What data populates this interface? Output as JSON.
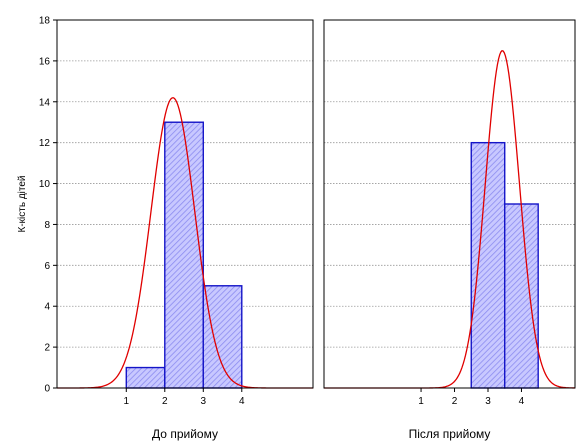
{
  "colors": {
    "background": "#ffffff",
    "panel_background": "#ffffff",
    "bar_fill": "#c8c8ff",
    "bar_hatch": "#8c8cf0",
    "bar_stroke": "#1515c8",
    "curve": "#e00000",
    "grid": "#9a9a9a",
    "axis": "#000000"
  },
  "chart_data": [
    {
      "type": "bar",
      "panel": "left",
      "title": "",
      "xlabel": "До прийому",
      "ylabel": "К-кість дітей",
      "ylim": [
        0,
        18
      ],
      "yticks": [
        "0",
        "2",
        "4",
        "6",
        "8",
        "10",
        "12",
        "14",
        "16",
        "18"
      ],
      "xlim": [
        -0.8,
        5.85
      ],
      "xticks": [
        "1",
        "2",
        "3",
        "4"
      ],
      "grid": true,
      "histogram": {
        "bins": [
          [
            1,
            2
          ],
          [
            2,
            3
          ],
          [
            3,
            4
          ]
        ],
        "counts": [
          1,
          13,
          5
        ]
      },
      "normal_fit": {
        "mean": 2.21,
        "sd": 0.57,
        "peak": 14.2
      }
    },
    {
      "type": "bar",
      "panel": "right",
      "title": "",
      "xlabel": "Після прийому",
      "ylabel": "",
      "ylim": [
        0,
        18
      ],
      "yticks": [
        "0",
        "2",
        "4",
        "6",
        "8",
        "10",
        "12",
        "14",
        "16",
        "18"
      ],
      "xlim": [
        -1.9,
        5.6
      ],
      "xticks": [
        "1",
        "2",
        "3",
        "4"
      ],
      "grid": true,
      "histogram": {
        "bins": [
          [
            2.5,
            3.5
          ],
          [
            3.5,
            4.5
          ]
        ],
        "counts": [
          12,
          9
        ]
      },
      "normal_fit": {
        "mean": 3.43,
        "sd": 0.51,
        "peak": 16.5
      }
    }
  ]
}
